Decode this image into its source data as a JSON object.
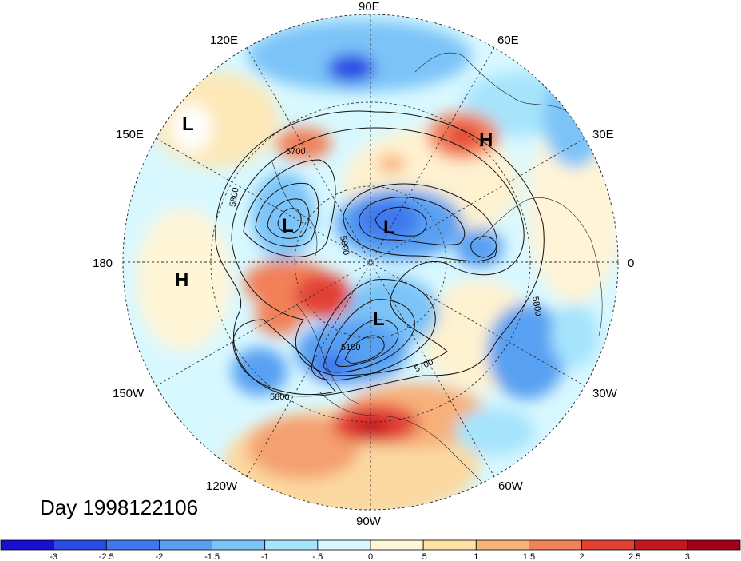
{
  "map": {
    "projection": "polar stereographic (Northern Hemisphere)",
    "lon_labels": {
      "lon90e": "90E",
      "lon60e": "60E",
      "lon30e": "30E",
      "lon0": "0",
      "lon30w": "30W",
      "lon60w": "60W",
      "lon90w": "90W",
      "lon120w": "120W",
      "lon150w": "150W",
      "lon180": "180",
      "lon150e": "150E",
      "lon120e": "120E"
    },
    "pressure_centers": [
      {
        "type": "L",
        "lon": 135,
        "lat": 40
      },
      {
        "type": "H",
        "lon": 45,
        "lat": 55
      },
      {
        "type": "L",
        "lon": 170,
        "lat": 55
      },
      {
        "type": "L",
        "lon": 80,
        "lat": 75
      },
      {
        "type": "H",
        "lon": -175,
        "lat": 40
      },
      {
        "type": "L",
        "lon": -80,
        "lat": 70
      }
    ],
    "contour_labels": [
      "5700",
      "5800",
      "5800",
      "5800",
      "5800",
      "5100",
      "5700"
    ],
    "colors": {
      "strong_negative": "#2020d0",
      "negative": "#5aa0f0",
      "weak_negative": "#d8f8ff",
      "weak_positive": "#fff0c8",
      "positive": "#f08060",
      "strong_positive": "#c01820"
    }
  },
  "title": "Day 1998122106",
  "colorbar": {
    "ticks": [
      "-3",
      "-2.5",
      "-2",
      "-1.5",
      "-1",
      "-.5",
      "0",
      ".5",
      "1",
      "1.5",
      "2",
      "2.5",
      "3"
    ],
    "colors": [
      "#1a0fd0",
      "#2a4ae6",
      "#3f78ee",
      "#58a0f2",
      "#7cc4f8",
      "#a6e4fc",
      "#d8f8ff",
      "#fff6d8",
      "#fde2a4",
      "#f8b478",
      "#f28058",
      "#e34034",
      "#c51622",
      "#a3001c"
    ]
  }
}
